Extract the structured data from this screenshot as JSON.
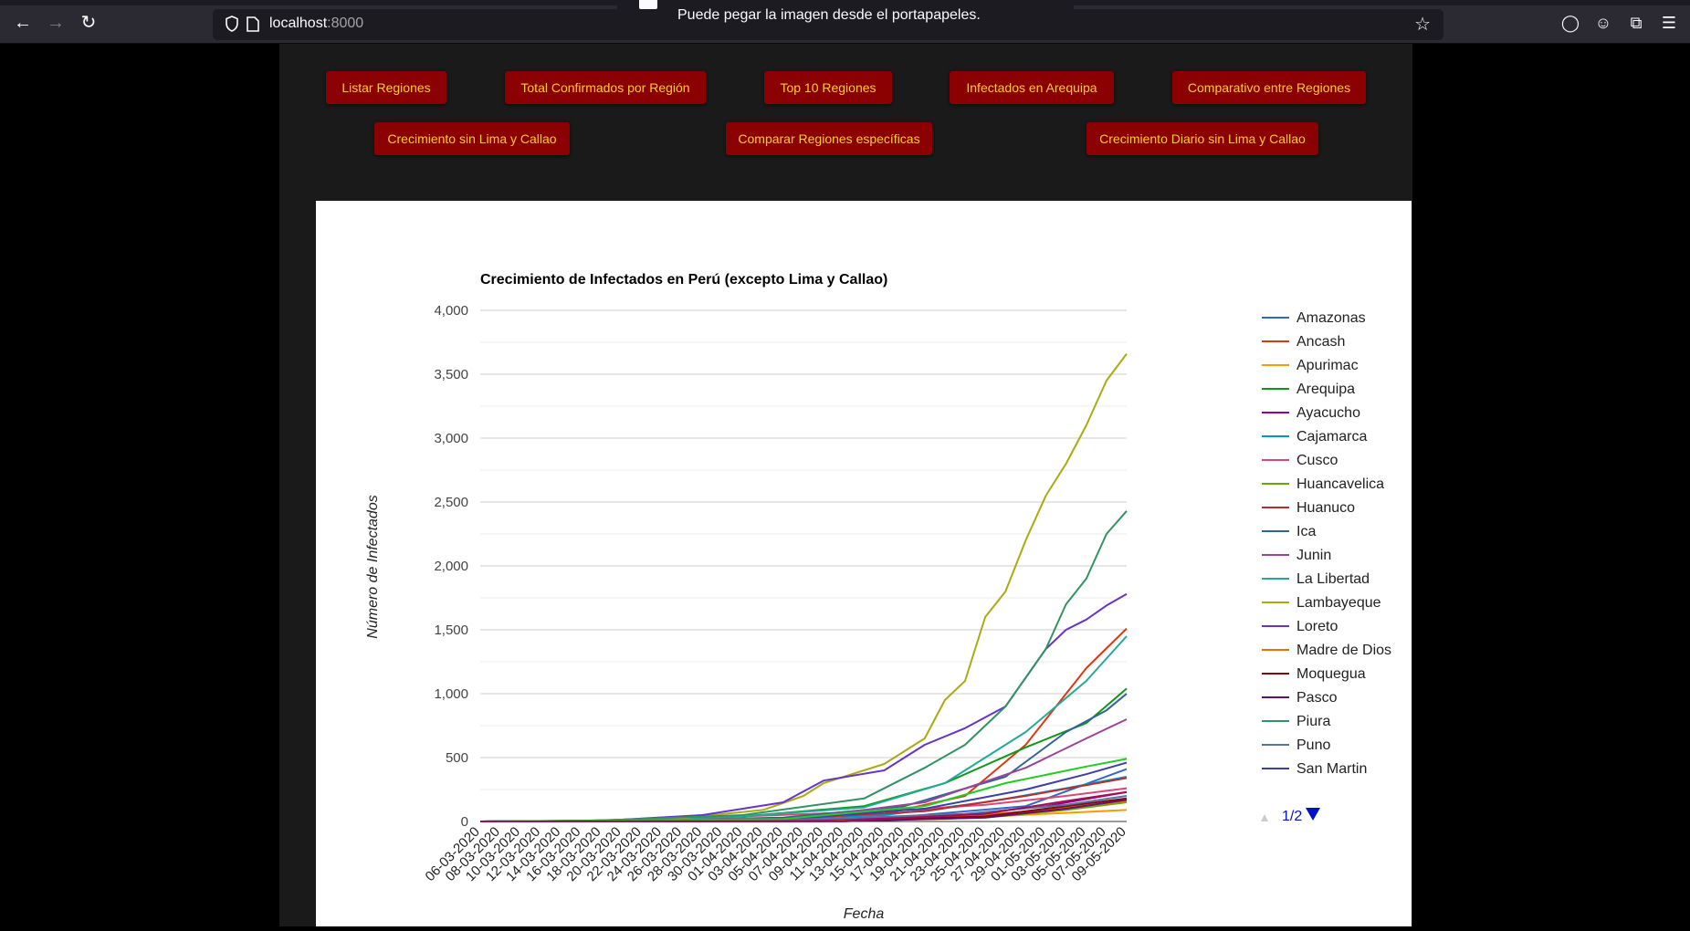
{
  "browser": {
    "url_host": "localhost",
    "url_port": ":8000",
    "notification": "Puede pegar la imagen desde el portapapeles."
  },
  "nav": {
    "buttons_row1": [
      "Listar Regiones",
      "Total Confirmados por Región",
      "Top 10 Regiones",
      "Infectados en Arequipa",
      "Comparativo entre Regiones"
    ],
    "buttons_row2": [
      "Crecimiento sin Lima y Callao",
      "Comparar Regiones específicas",
      "Crecimiento Diario sin Lima y Callao"
    ]
  },
  "legend": {
    "page": "1/2"
  },
  "chart_data": {
    "type": "line",
    "title": "Crecimiento de Infectados en Perú (excepto Lima y Callao)",
    "xlabel": "Fecha",
    "ylabel": "Número de Infectados",
    "ylim": [
      0,
      4000
    ],
    "yticks": [
      0,
      500,
      1000,
      1500,
      2000,
      2500,
      3000,
      3500,
      4000
    ],
    "ytick_labels": [
      "0",
      "500",
      "1,000",
      "1,500",
      "2,000",
      "2,500",
      "3,000",
      "3,500",
      "4,000"
    ],
    "grid": true,
    "legend_position": "right",
    "x_tick_labels": [
      "06-03-2020",
      "08-03-2020",
      "10-03-2020",
      "12-03-2020",
      "14-03-2020",
      "16-03-2020",
      "18-03-2020",
      "20-03-2020",
      "22-03-2020",
      "24-03-2020",
      "26-03-2020",
      "28-03-2020",
      "30-03-2020",
      "01-04-2020",
      "03-04-2020",
      "05-04-2020",
      "07-04-2020",
      "09-04-2020",
      "11-04-2020",
      "13-04-2020",
      "15-04-2020",
      "17-04-2020",
      "19-04-2020",
      "21-04-2020",
      "23-04-2020",
      "25-04-2020",
      "27-04-2020",
      "29-04-2020",
      "01-05-2020",
      "03-05-2020",
      "05-05-2020",
      "07-05-2020",
      "09-05-2020"
    ],
    "series": [
      {
        "name": "Amazonas",
        "color": "#3366cc",
        "points": [
          [
            "06-03-2020",
            0
          ],
          [
            "01-04-2020",
            3
          ],
          [
            "15-04-2020",
            25
          ],
          [
            "29-04-2020",
            120
          ],
          [
            "09-05-2020",
            410
          ]
        ]
      },
      {
        "name": "Ancash",
        "color": "#dc3912",
        "points": [
          [
            "06-03-2020",
            0
          ],
          [
            "01-04-2020",
            10
          ],
          [
            "15-04-2020",
            60
          ],
          [
            "23-04-2020",
            200
          ],
          [
            "29-04-2020",
            600
          ],
          [
            "05-05-2020",
            1200
          ],
          [
            "09-05-2020",
            1510
          ]
        ]
      },
      {
        "name": "Apurimac",
        "color": "#ff9900",
        "points": [
          [
            "06-03-2020",
            0
          ],
          [
            "05-04-2020",
            2
          ],
          [
            "21-04-2020",
            20
          ],
          [
            "01-05-2020",
            60
          ],
          [
            "09-05-2020",
            90
          ]
        ]
      },
      {
        "name": "Arequipa",
        "color": "#109618",
        "points": [
          [
            "06-03-2020",
            0
          ],
          [
            "18-03-2020",
            6
          ],
          [
            "01-04-2020",
            40
          ],
          [
            "13-04-2020",
            120
          ],
          [
            "21-04-2020",
            300
          ],
          [
            "29-04-2020",
            580
          ],
          [
            "05-05-2020",
            770
          ],
          [
            "09-05-2020",
            1040
          ]
        ]
      },
      {
        "name": "Ayacucho",
        "color": "#990099",
        "points": [
          [
            "06-03-2020",
            0
          ],
          [
            "05-04-2020",
            5
          ],
          [
            "21-04-2020",
            40
          ],
          [
            "01-05-2020",
            120
          ],
          [
            "09-05-2020",
            230
          ]
        ]
      },
      {
        "name": "Cajamarca",
        "color": "#0099c6",
        "points": [
          [
            "06-03-2020",
            0
          ],
          [
            "01-04-2020",
            10
          ],
          [
            "15-04-2020",
            50
          ],
          [
            "25-04-2020",
            150
          ],
          [
            "03-05-2020",
            260
          ],
          [
            "09-05-2020",
            350
          ]
        ]
      },
      {
        "name": "Cusco",
        "color": "#dd4477",
        "points": [
          [
            "06-03-2020",
            0
          ],
          [
            "16-03-2020",
            5
          ],
          [
            "01-04-2020",
            40
          ],
          [
            "15-04-2020",
            80
          ],
          [
            "25-04-2020",
            130
          ],
          [
            "03-05-2020",
            200
          ],
          [
            "09-05-2020",
            260
          ]
        ]
      },
      {
        "name": "Huancavelica",
        "color": "#66aa00",
        "points": [
          [
            "06-03-2020",
            0
          ],
          [
            "09-04-2020",
            2
          ],
          [
            "25-04-2020",
            30
          ],
          [
            "03-05-2020",
            90
          ],
          [
            "09-05-2020",
            150
          ]
        ]
      },
      {
        "name": "Huanuco",
        "color": "#b82e2e",
        "points": [
          [
            "06-03-2020",
            0
          ],
          [
            "24-03-2020",
            3
          ],
          [
            "05-04-2020",
            20
          ],
          [
            "19-04-2020",
            80
          ],
          [
            "29-04-2020",
            200
          ],
          [
            "09-05-2020",
            340
          ]
        ]
      },
      {
        "name": "Ica",
        "color": "#316395",
        "points": [
          [
            "06-03-2020",
            0
          ],
          [
            "18-03-2020",
            5
          ],
          [
            "05-04-2020",
            30
          ],
          [
            "17-04-2020",
            120
          ],
          [
            "27-04-2020",
            350
          ],
          [
            "03-05-2020",
            700
          ],
          [
            "07-05-2020",
            870
          ],
          [
            "09-05-2020",
            1000
          ]
        ]
      },
      {
        "name": "Junin",
        "color": "#994499",
        "points": [
          [
            "06-03-2020",
            0
          ],
          [
            "20-03-2020",
            5
          ],
          [
            "07-04-2020",
            30
          ],
          [
            "19-04-2020",
            150
          ],
          [
            "29-04-2020",
            420
          ],
          [
            "05-05-2020",
            650
          ],
          [
            "09-05-2020",
            800
          ]
        ]
      },
      {
        "name": "La Libertad",
        "color": "#22aa99",
        "points": [
          [
            "06-03-2020",
            0
          ],
          [
            "16-03-2020",
            5
          ],
          [
            "01-04-2020",
            40
          ],
          [
            "13-04-2020",
            110
          ],
          [
            "21-04-2020",
            300
          ],
          [
            "29-04-2020",
            700
          ],
          [
            "05-05-2020",
            1100
          ],
          [
            "09-05-2020",
            1450
          ]
        ]
      },
      {
        "name": "Lambayeque",
        "color": "#aaaa11",
        "points": [
          [
            "06-03-2020",
            0
          ],
          [
            "24-03-2020",
            10
          ],
          [
            "03-04-2020",
            90
          ],
          [
            "07-04-2020",
            200
          ],
          [
            "09-04-2020",
            300
          ],
          [
            "15-04-2020",
            450
          ],
          [
            "19-04-2020",
            650
          ],
          [
            "21-04-2020",
            950
          ],
          [
            "23-04-2020",
            1100
          ],
          [
            "25-04-2020",
            1600
          ],
          [
            "27-04-2020",
            1800
          ],
          [
            "29-04-2020",
            2200
          ],
          [
            "01-05-2020",
            2550
          ],
          [
            "03-05-2020",
            2800
          ],
          [
            "05-05-2020",
            3100
          ],
          [
            "07-05-2020",
            3450
          ],
          [
            "09-05-2020",
            3660
          ]
        ]
      },
      {
        "name": "Loreto",
        "color": "#6633cc",
        "points": [
          [
            "06-03-2020",
            0
          ],
          [
            "18-03-2020",
            5
          ],
          [
            "28-03-2020",
            50
          ],
          [
            "05-04-2020",
            150
          ],
          [
            "09-04-2020",
            320
          ],
          [
            "15-04-2020",
            400
          ],
          [
            "19-04-2020",
            600
          ],
          [
            "23-04-2020",
            730
          ],
          [
            "27-04-2020",
            900
          ],
          [
            "01-05-2020",
            1350
          ],
          [
            "03-05-2020",
            1500
          ],
          [
            "05-05-2020",
            1580
          ],
          [
            "07-05-2020",
            1690
          ],
          [
            "09-05-2020",
            1780
          ]
        ]
      },
      {
        "name": "Madre de Dios",
        "color": "#e67300",
        "points": [
          [
            "06-03-2020",
            0
          ],
          [
            "09-04-2020",
            3
          ],
          [
            "21-04-2020",
            30
          ],
          [
            "01-05-2020",
            90
          ],
          [
            "09-05-2020",
            160
          ]
        ]
      },
      {
        "name": "Moquegua",
        "color": "#8b0707",
        "points": [
          [
            "06-03-2020",
            0
          ],
          [
            "11-04-2020",
            2
          ],
          [
            "25-04-2020",
            40
          ],
          [
            "03-05-2020",
            120
          ],
          [
            "09-05-2020",
            180
          ]
        ]
      },
      {
        "name": "Pasco",
        "color": "#651067",
        "points": [
          [
            "06-03-2020",
            0
          ],
          [
            "11-04-2020",
            2
          ],
          [
            "25-04-2020",
            30
          ],
          [
            "03-05-2020",
            100
          ],
          [
            "09-05-2020",
            170
          ]
        ]
      },
      {
        "name": "Piura",
        "color": "#329262",
        "points": [
          [
            "06-03-2020",
            0
          ],
          [
            "18-03-2020",
            8
          ],
          [
            "01-04-2020",
            50
          ],
          [
            "13-04-2020",
            180
          ],
          [
            "19-04-2020",
            420
          ],
          [
            "23-04-2020",
            600
          ],
          [
            "27-04-2020",
            900
          ],
          [
            "01-05-2020",
            1350
          ],
          [
            "03-05-2020",
            1700
          ],
          [
            "05-05-2020",
            1900
          ],
          [
            "07-05-2020",
            2250
          ],
          [
            "09-05-2020",
            2430
          ]
        ]
      },
      {
        "name": "Puno",
        "color": "#5574a6",
        "points": [
          [
            "06-03-2020",
            0
          ],
          [
            "24-03-2020",
            3
          ],
          [
            "09-04-2020",
            20
          ],
          [
            "23-04-2020",
            60
          ],
          [
            "03-05-2020",
            130
          ],
          [
            "09-05-2020",
            200
          ]
        ]
      },
      {
        "name": "San Martin",
        "color": "#3b3eac",
        "points": [
          [
            "06-03-2020",
            0
          ],
          [
            "24-03-2020",
            3
          ],
          [
            "07-04-2020",
            30
          ],
          [
            "19-04-2020",
            100
          ],
          [
            "29-04-2020",
            250
          ],
          [
            "05-05-2020",
            370
          ],
          [
            "09-05-2020",
            460
          ]
        ]
      },
      {
        "name": "",
        "color": "#22cc22",
        "points": [
          [
            "06-03-2020",
            0
          ],
          [
            "05-04-2020",
            20
          ],
          [
            "19-04-2020",
            120
          ],
          [
            "27-04-2020",
            300
          ],
          [
            "05-05-2020",
            430
          ],
          [
            "09-05-2020",
            490
          ]
        ]
      },
      {
        "name": "",
        "color": "#a01050",
        "points": [
          [
            "06-03-2020",
            0
          ],
          [
            "11-04-2020",
            5
          ],
          [
            "25-04-2020",
            60
          ],
          [
            "03-05-2020",
            160
          ],
          [
            "09-05-2020",
            230
          ]
        ]
      }
    ]
  }
}
